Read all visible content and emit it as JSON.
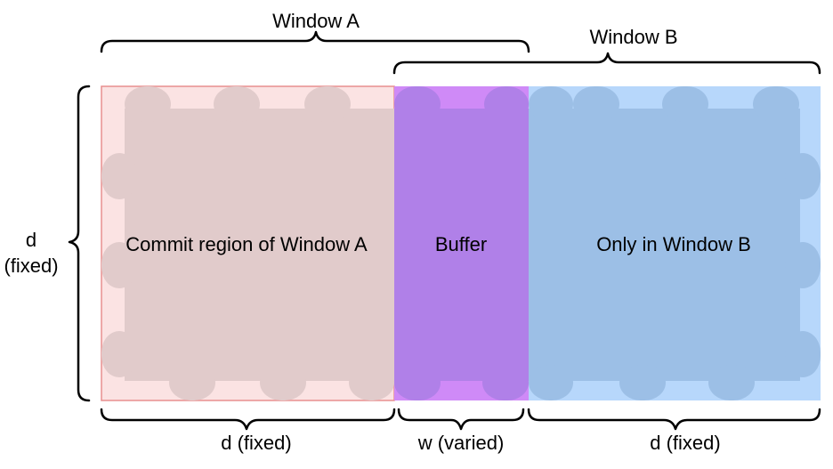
{
  "labels": {
    "window_a": "Window A",
    "window_b": "Window B",
    "commit_region": "Commit region of Window A",
    "buffer": "Buffer",
    "only_b": "Only in Window B",
    "left_d_line1": "d",
    "left_d_line2": "(fixed)",
    "bottom_d_left": "d (fixed)",
    "bottom_w": "w (varied)",
    "bottom_d_right": "d (fixed)"
  },
  "colors": {
    "commit_fill": "#fbe3e3",
    "commit_border": "#e88f8f",
    "commit_puzzle": "#e1cbcb",
    "buffer_fill": "#cf8af7",
    "buffer_puzzle": "#b080e8",
    "only_b_fill": "#b7d7fb",
    "only_b_puzzle": "#9cbfe6",
    "brace": "#000000"
  }
}
